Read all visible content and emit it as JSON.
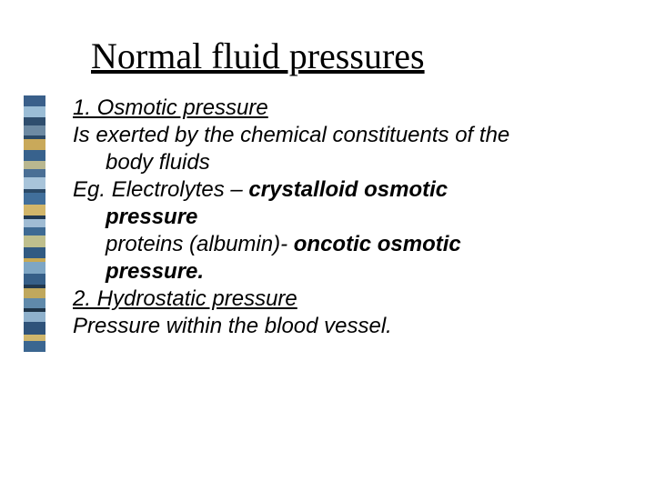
{
  "title": "Normal fluid pressures",
  "lines": {
    "l1": "1. Osmotic pressure",
    "l2": "Is exerted  by the chemical constituents of the",
    "l2b": "body fluids",
    "l3a": "Eg. Electrolytes – ",
    "l3b": "crystalloid osmotic",
    "l3c": "pressure",
    "l4a": "proteins (albumin)- ",
    "l4b": "oncotic osmotic",
    "l4c": "pressure.",
    "l5": "2. Hydrostatic pressure",
    "l6": "Pressure within the blood vessel."
  },
  "stripes": [
    {
      "h": 12,
      "c": "#3a5f8a"
    },
    {
      "h": 12,
      "c": "#9bbdd6"
    },
    {
      "h": 9,
      "c": "#2f4e6e"
    },
    {
      "h": 11,
      "c": "#6d8aa3"
    },
    {
      "h": 4,
      "c": "#2b4a68"
    },
    {
      "h": 12,
      "c": "#c9a95a"
    },
    {
      "h": 12,
      "c": "#38628d"
    },
    {
      "h": 9,
      "c": "#b9b78f"
    },
    {
      "h": 9,
      "c": "#4a6f95"
    },
    {
      "h": 13,
      "c": "#a8c4da"
    },
    {
      "h": 4,
      "c": "#2b4a68"
    },
    {
      "h": 13,
      "c": "#416f9b"
    },
    {
      "h": 12,
      "c": "#d2b66a"
    },
    {
      "h": 4,
      "c": "#223a52"
    },
    {
      "h": 9,
      "c": "#a0bcd4"
    },
    {
      "h": 9,
      "c": "#3e6a93"
    },
    {
      "h": 13,
      "c": "#bfbf8d"
    },
    {
      "h": 12,
      "c": "#315a82"
    },
    {
      "h": 4,
      "c": "#c7a954"
    },
    {
      "h": 13,
      "c": "#7ea6c4"
    },
    {
      "h": 12,
      "c": "#365f88"
    },
    {
      "h": 4,
      "c": "#21384e"
    },
    {
      "h": 11,
      "c": "#c0a85d"
    },
    {
      "h": 11,
      "c": "#608aab"
    },
    {
      "h": 4,
      "c": "#1f3448"
    },
    {
      "h": 11,
      "c": "#8fb1cc"
    },
    {
      "h": 14,
      "c": "#2f537a"
    },
    {
      "h": 7,
      "c": "#cfb66c"
    },
    {
      "h": 12,
      "c": "#3b6690"
    }
  ]
}
